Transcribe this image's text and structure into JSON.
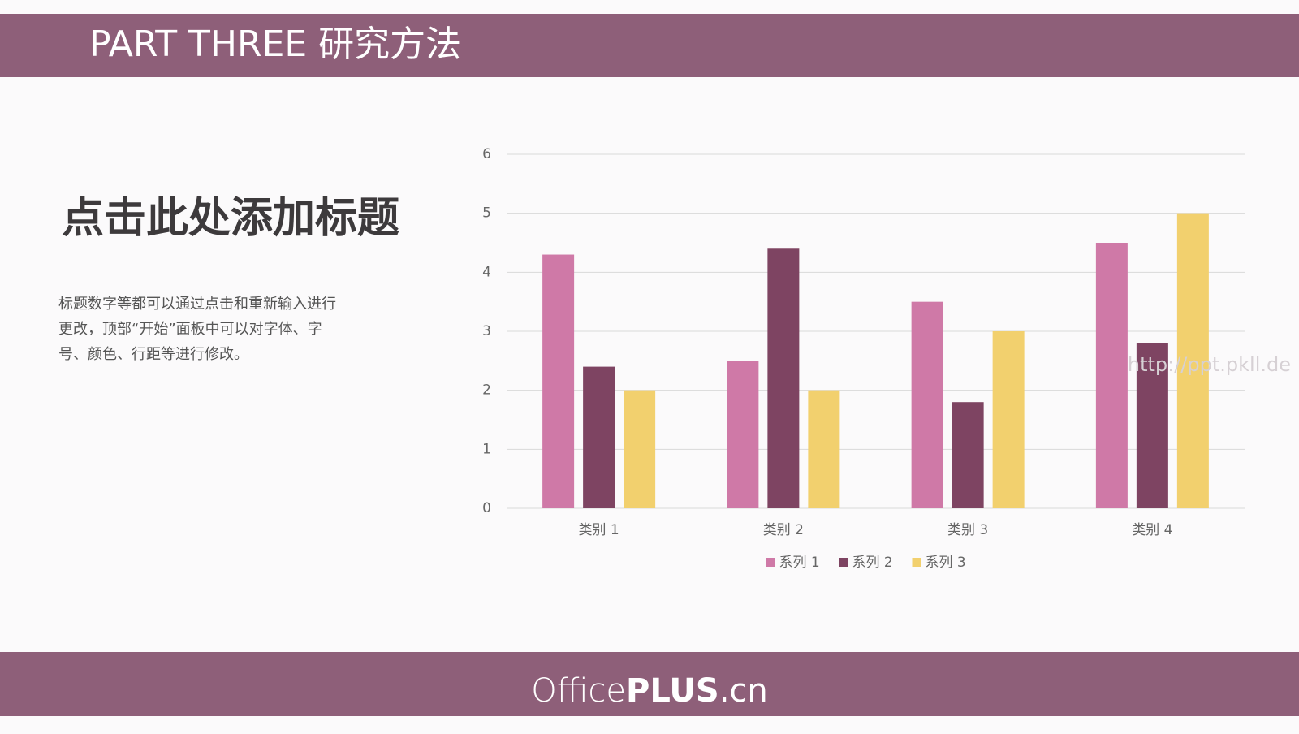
{
  "header": {
    "title": "PART THREE  研究方法"
  },
  "content": {
    "heading": "点击此处添加标题",
    "paragraph": [
      "标题数字等都可以通过点击和重新输入进行",
      "更改，顶部“开始”面板中可以对字体、字",
      "号、颜色、行距等进行修改。"
    ]
  },
  "watermark": "http://ppt.pkll.de",
  "footer": {
    "brand": [
      "Office",
      "PLUS",
      ".cn"
    ]
  },
  "chart_data": {
    "type": "bar",
    "categories": [
      "类别 1",
      "类别 2",
      "类别 3",
      "类别 4"
    ],
    "series": [
      {
        "name": "系列 1",
        "color": "#cf79a7",
        "values": [
          4.3,
          2.5,
          3.5,
          4.5
        ]
      },
      {
        "name": "系列 2",
        "color": "#7e4462",
        "values": [
          2.4,
          4.4,
          1.8,
          2.8
        ]
      },
      {
        "name": "系列 3",
        "color": "#f2d06e",
        "values": [
          2,
          2,
          3,
          5
        ]
      }
    ],
    "ylim": [
      0,
      6
    ],
    "yticks": [
      0,
      1,
      2,
      3,
      4,
      5,
      6
    ],
    "grid": true,
    "legend": "bottom"
  }
}
